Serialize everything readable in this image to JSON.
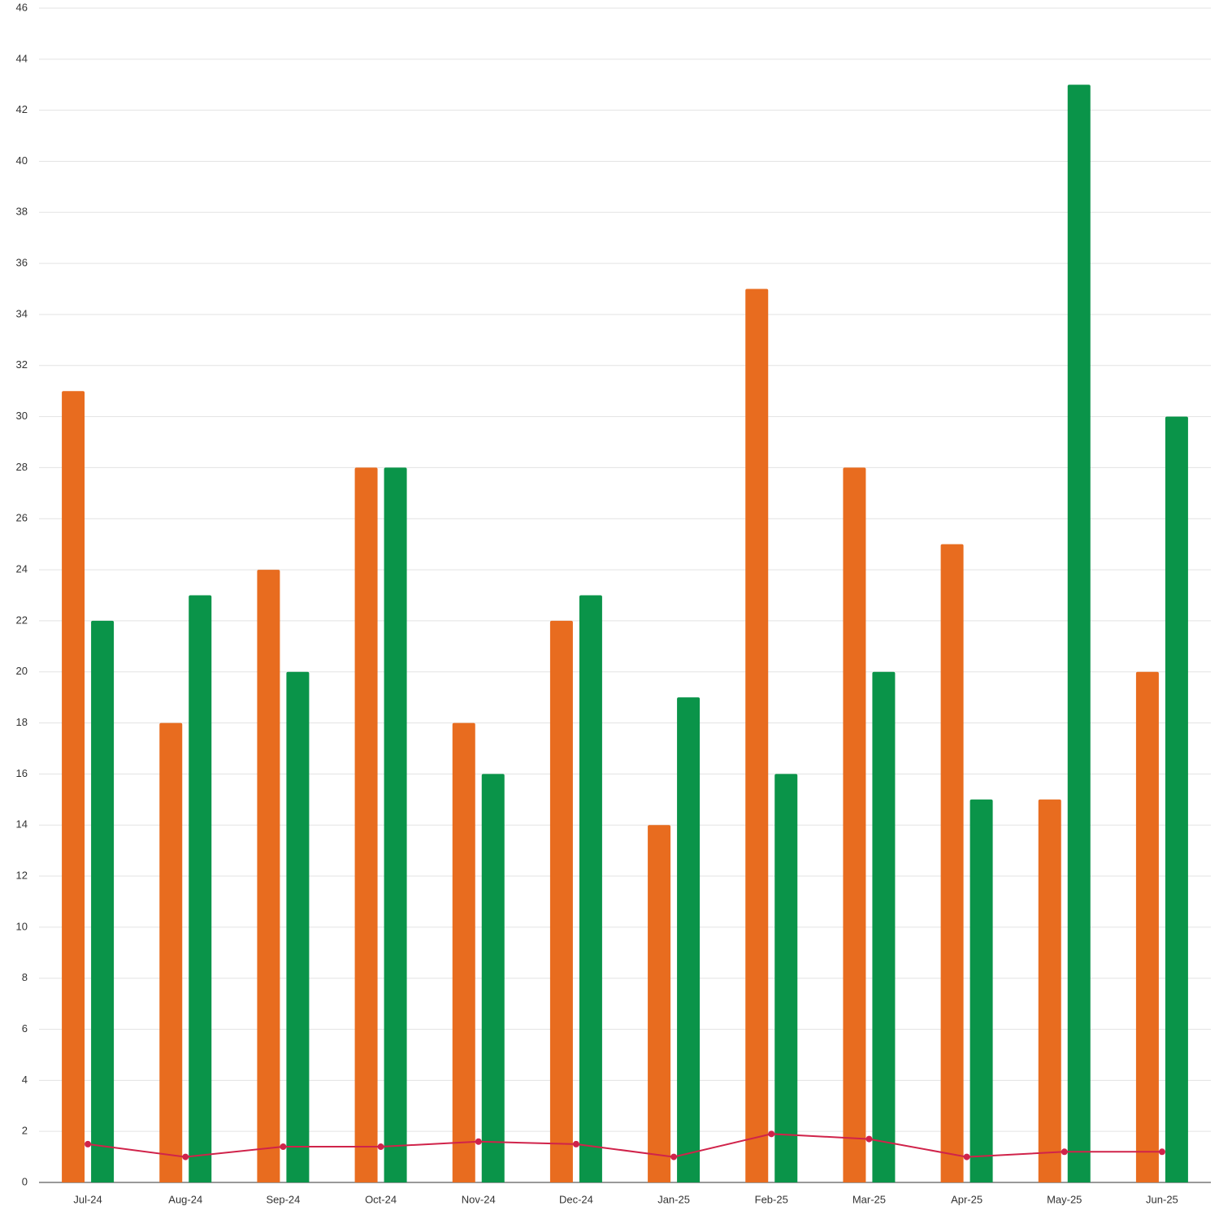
{
  "chart_data": {
    "type": "bar",
    "categories": [
      "Jul-24",
      "Aug-24",
      "Sep-24",
      "Oct-24",
      "Nov-24",
      "Dec-24",
      "Jan-25",
      "Feb-25",
      "Mar-25",
      "Apr-25",
      "May-25",
      "Jun-25"
    ],
    "series": [
      {
        "type": "bar",
        "color": "#e86c1f",
        "values": [
          31,
          18,
          24,
          28,
          18,
          22,
          14,
          35,
          28,
          25,
          15,
          20
        ]
      },
      {
        "type": "bar",
        "color": "#0a9449",
        "values": [
          22,
          23,
          20,
          28,
          16,
          23,
          19,
          16,
          20,
          15,
          43,
          30
        ]
      },
      {
        "type": "line",
        "color": "#d0234a",
        "values": [
          1.5,
          1.0,
          1.4,
          1.4,
          1.6,
          1.5,
          1.0,
          1.9,
          1.7,
          1.0,
          1.2,
          1.2
        ]
      }
    ],
    "ylim": [
      0,
      46
    ],
    "yticks": [
      0,
      2,
      4,
      6,
      8,
      10,
      12,
      14,
      16,
      18,
      20,
      22,
      24,
      26,
      28,
      30,
      32,
      34,
      36,
      38,
      40,
      42,
      44,
      46
    ],
    "grid": true
  }
}
